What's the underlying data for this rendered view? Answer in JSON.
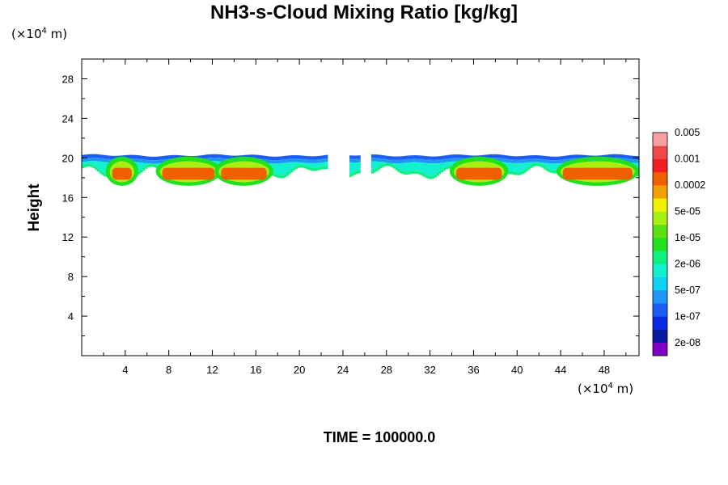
{
  "chart_data": {
    "type": "heatmap",
    "title": "NH3-s-Cloud Mixing Ratio [kg/kg]",
    "ylabel": "Height",
    "x_unit_prefix": "(×10",
    "x_unit_exp": "4",
    "x_unit_suffix": " m)",
    "y_unit_prefix": "(×10",
    "y_unit_exp": "4",
    "y_unit_suffix": " m)",
    "xlim": [
      0,
      51.2
    ],
    "ylim": [
      0,
      30
    ],
    "x_ticks": [
      4,
      8,
      12,
      16,
      20,
      24,
      28,
      32,
      36,
      40,
      44,
      48
    ],
    "y_ticks": [
      4,
      8,
      12,
      16,
      20,
      24,
      28
    ],
    "footer": "TIME = 100000.0",
    "colorbar": {
      "colors": [
        "#7f00c4",
        "#0a1aa0",
        "#0a28e6",
        "#1b5cf5",
        "#1e96f5",
        "#10d2f0",
        "#12f0d0",
        "#10f080",
        "#20e020",
        "#5ce014",
        "#a8f014",
        "#f0f000",
        "#f0a000",
        "#f06000",
        "#f02020",
        "#f04848",
        "#f8a0a0"
      ],
      "labels": [
        "2e-08",
        "1e-07",
        "5e-07",
        "2e-06",
        "1e-05",
        "5e-05",
        "0.0002",
        "0.001",
        "0.005"
      ]
    },
    "cloud_layer": {
      "top_height": 20.3,
      "base_height": 17.6,
      "core_height": 18.4,
      "gaps_x": [
        [
          22.4,
          24.5
        ],
        [
          25.5,
          26.5
        ]
      ],
      "cores": [
        {
          "x0": 2.8,
          "x1": 4.6,
          "level": "0.0002"
        },
        {
          "x0": 7.4,
          "x1": 12.2,
          "level": "0.0002"
        },
        {
          "x0": 12.8,
          "x1": 17.0,
          "level": "0.0002"
        },
        {
          "x0": 34.4,
          "x1": 38.6,
          "level": "0.0002"
        },
        {
          "x0": 44.2,
          "x1": 50.6,
          "level": "0.0002"
        }
      ]
    }
  }
}
